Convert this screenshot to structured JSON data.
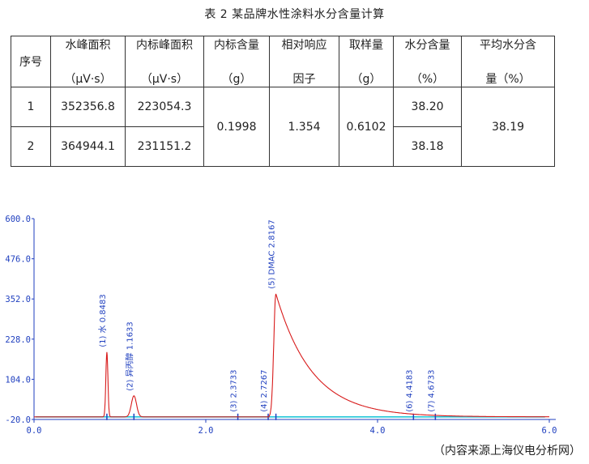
{
  "caption": "表 2  某品牌水性涂料水分含量计算",
  "table": {
    "headers": [
      {
        "line1": "序号",
        "line2": ""
      },
      {
        "line1": "水峰面积",
        "line2": "（μV·s）"
      },
      {
        "line1": "内标峰面积",
        "line2": "（μV·s）"
      },
      {
        "line1": "内标含量",
        "line2": "（g）"
      },
      {
        "line1": "相对响应",
        "line2": "因子"
      },
      {
        "line1": "取样量",
        "line2": "（g）"
      },
      {
        "line1": "水分含量",
        "line2": "（%）"
      },
      {
        "line1": "平均水分含",
        "line2": "量（%）"
      }
    ],
    "rows": [
      {
        "no": "1",
        "water_area": "352356.8",
        "is_area": "223054.3",
        "water_pct": "38.20"
      },
      {
        "no": "2",
        "water_area": "364944.1",
        "is_area": "231151.2",
        "water_pct": "38.18"
      }
    ],
    "merged": {
      "is_content": "0.1998",
      "rrf": "1.354",
      "sample": "0.6102",
      "avg": "38.19"
    }
  },
  "chart_data": {
    "type": "line",
    "xlim": [
      0,
      6.0
    ],
    "ylim": [
      -20,
      600
    ],
    "yticks": [
      "600.0",
      "476.0",
      "352.0",
      "228.0",
      "104.0",
      "-20.0"
    ],
    "xticks": [
      "0.0",
      "2.0",
      "4.0",
      "6.0"
    ],
    "baseline": -12,
    "peaks": [
      {
        "label": "(1) 水 0.8483",
        "rt": 0.8483,
        "height": 200
      },
      {
        "label": "(2) 异丙醇 1.1633",
        "rt": 1.1633,
        "height": 65
      },
      {
        "label": "(3)  2.3733",
        "rt": 2.3733,
        "height": 0
      },
      {
        "label": "(4)  2.7267",
        "rt": 2.7267,
        "height": 0
      },
      {
        "label": "(5) DMAC 2.8167",
        "rt": 2.8167,
        "height": 380
      },
      {
        "label": "(6)  4.4183",
        "rt": 4.4183,
        "height": 0
      },
      {
        "label": "(7)  4.6733",
        "rt": 4.6733,
        "height": 0
      }
    ],
    "colors": {
      "trace": "#d81b1b",
      "axis": "#1f3fbf",
      "ticklabel": "#1f3fbf",
      "baseline": "#22c6d8",
      "label": "#1f3fbf"
    }
  },
  "footer": "（内容来源上海仪电分析网）"
}
